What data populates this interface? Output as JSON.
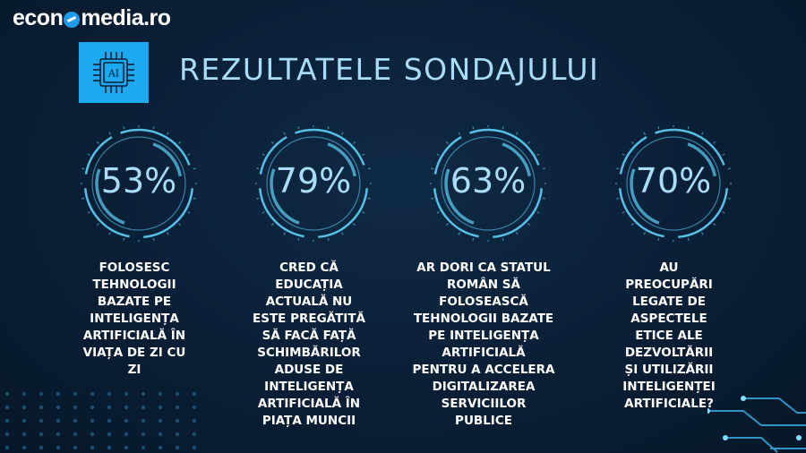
{
  "brand": {
    "name_part1": "econ",
    "name_part2": "media.ro"
  },
  "chip": {
    "label": "AI"
  },
  "title": "REZULTATELE SONDAJULUI",
  "colors": {
    "accent": "#1da9ef",
    "title": "#a9dcf8",
    "ring": "#5fd0f7"
  },
  "stats": [
    {
      "percent_text": "53%",
      "value": 53,
      "description": "FOLOSESC\nTEHNOLOGII\nBAZATE PE\nINTELIGENȚA\nARTIFICIALĂ ÎN\nVIAȚA DE ZI CU\nZI"
    },
    {
      "percent_text": "79%",
      "value": 79,
      "description": "CRED CĂ\nEDUCAȚIA\nACTUALĂ NU\nESTE PREGĂTITĂ\nSĂ FACĂ FAȚĂ\nSCHIMBĂRILOR\nADUSE DE\nINTELIGENȚA\nARTIFICIALĂ ÎN\nPIAȚA MUNCII"
    },
    {
      "percent_text": "63%",
      "value": 63,
      "description": "AR DORI CA STATUL\nROMÂN SĂ\nFOLOSEASCĂ\nTEHNOLOGII BAZATE\nPE INTELIGENȚA\nARTIFICIALĂ\nPENTRU A ACCELERA\nDIGITALIZAREA\nSERVICIILOR\nPUBLICE"
    },
    {
      "percent_text": "70%",
      "value": 70,
      "description": "AU\nPREOCUPĂRI\nLEGATE DE\nASPECTELE\nETICE ALE\nDEZVOLTĂRII\nȘI UTILIZĂRII\nINTELIGENȚEI\nARTIFICIALE?"
    }
  ]
}
